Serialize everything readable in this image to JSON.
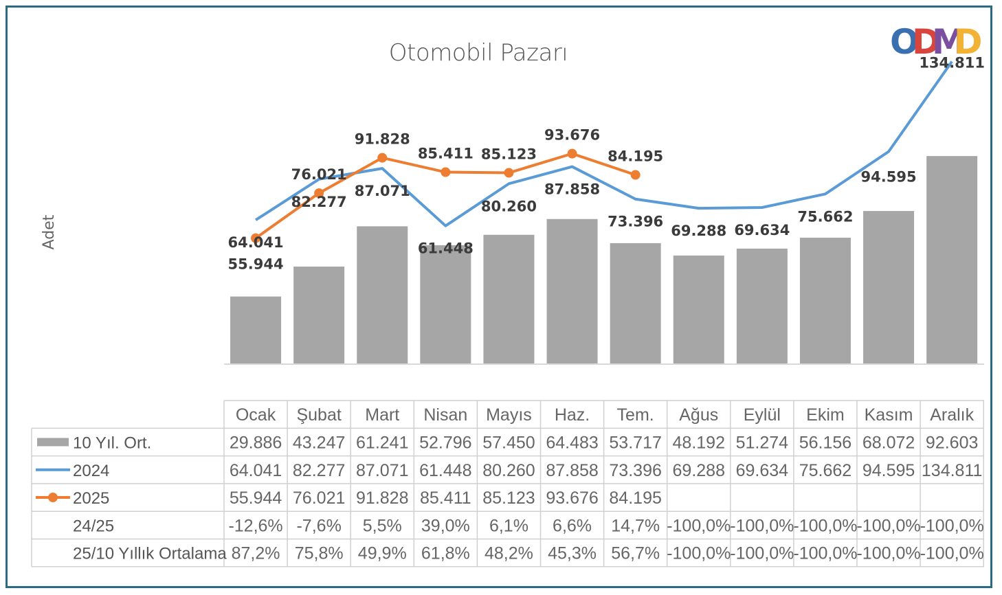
{
  "chart_data": {
    "type": "bar",
    "title": "Otomobil Pazarı",
    "ylabel": "Adet",
    "xlabel": "",
    "categories": [
      "Ocak",
      "Şubat",
      "Mart",
      "Nisan",
      "Mayıs",
      "Haz.",
      "Tem.",
      "Ağus",
      "Eylül",
      "Ekim",
      "Kasım",
      "Aralık"
    ],
    "ylim": [
      0,
      150000
    ],
    "legend_position": "data-table",
    "series": [
      {
        "name": "10 Yıl. Ort.",
        "kind": "bar",
        "color": "#a6a6a6",
        "values": [
          29886,
          43247,
          61241,
          52796,
          57450,
          64483,
          53717,
          48192,
          51274,
          56156,
          68072,
          92603
        ],
        "labels": [
          "29.886",
          "43.247",
          "61.241",
          "52.796",
          "57.450",
          "64.483",
          "53.717",
          "48.192",
          "51.274",
          "56.156",
          "68.072",
          "92.603"
        ]
      },
      {
        "name": "2024",
        "kind": "line",
        "color": "#5b9bd5",
        "values": [
          64041,
          82277,
          87071,
          61448,
          80260,
          87858,
          73396,
          69288,
          69634,
          75662,
          94595,
          134811
        ],
        "labels": [
          "64.041",
          "82.277",
          "87.071",
          "61.448",
          "80.260",
          "87.858",
          "73.396",
          "69.288",
          "69.634",
          "75.662",
          "94.595",
          "134.811"
        ]
      },
      {
        "name": "2025",
        "kind": "line-marker",
        "color": "#ed7d31",
        "values": [
          55944,
          76021,
          91828,
          85411,
          85123,
          93676,
          84195,
          null,
          null,
          null,
          null,
          null
        ],
        "labels": [
          "55.944",
          "76.021",
          "91.828",
          "85.411",
          "85.123",
          "93.676",
          "84.195",
          "",
          "",
          "",
          "",
          ""
        ]
      }
    ],
    "table_rows": [
      {
        "name": "24/25",
        "values": [
          "-12,6%",
          "-7,6%",
          "5,5%",
          "39,0%",
          "6,1%",
          "6,6%",
          "14,7%",
          "-100,0%",
          "-100,0%",
          "-100,0%",
          "-100,0%",
          "-100,0%"
        ]
      },
      {
        "name": "25/10 Yıllık Ortalama",
        "values": [
          "87,2%",
          "75,8%",
          "49,9%",
          "61,8%",
          "48,2%",
          "45,3%",
          "56,7%",
          "-100,0%",
          "-100,0%",
          "-100,0%",
          "-100,0%",
          "-100,0%"
        ]
      }
    ],
    "grid": false
  },
  "logo": {
    "text": "ODMD",
    "colors": [
      "#3a6fb0",
      "#d8453c",
      "#7a4fa0",
      "#f2b233"
    ]
  },
  "frame_color": "#2a6a82"
}
